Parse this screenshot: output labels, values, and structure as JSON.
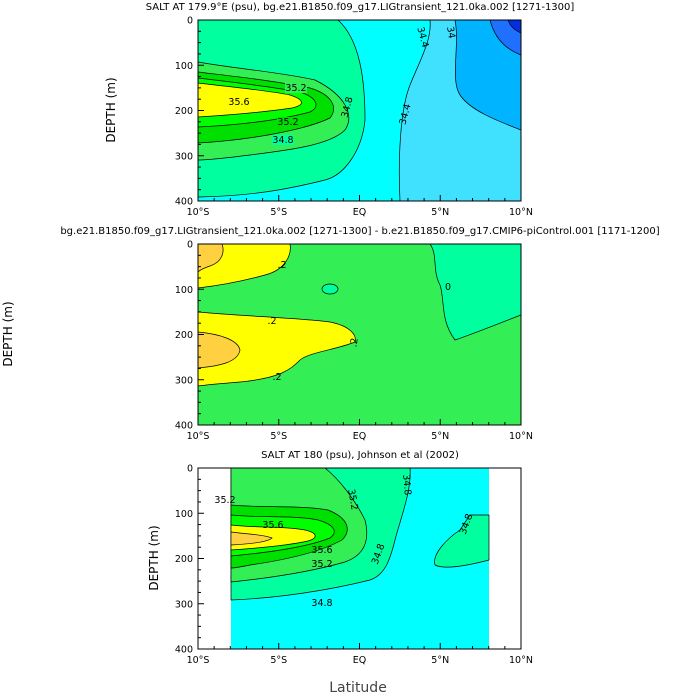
{
  "figure": {
    "xlabel": "Latitude"
  },
  "palette": {
    "cyan": "#00ffff",
    "sky": "#40e0ff",
    "blue": "#00b4ff",
    "deepblue": "#2070ff",
    "navy": "#0030e0",
    "mint": "#00ff9f",
    "lightgreen": "#33ee55",
    "green": "#00e000",
    "brightgreen": "#00ff00",
    "yellow": "#ffff00",
    "gold": "#ffd040",
    "orange": "#f6b048"
  },
  "chart_data": [
    {
      "type": "contour",
      "title": "SALT AT 179.9°E (psu), bg.e21.B1850.f09_g17.LIGtransient_121.0ka.002 [1271-1300]",
      "xlabel": "",
      "ylabel": "DEPTH (m)",
      "xlim": [
        -10,
        10
      ],
      "ylim": [
        400,
        0
      ],
      "x_ticks": [
        "10°S",
        "5°S",
        "EQ",
        "5°N",
        "10°N"
      ],
      "y_ticks": [
        0,
        100,
        200,
        300,
        400
      ],
      "contour_labels": [
        {
          "value": "35.2",
          "x": -3.8,
          "depth": 160
        },
        {
          "value": "35.6",
          "x": -7.3,
          "depth": 75
        },
        {
          "value": "35.2",
          "x": -4.8,
          "depth": 255
        },
        {
          "value": "34.8",
          "x": -5.2,
          "depth": 100
        },
        {
          "value": "34.8",
          "x": -1.0,
          "depth": 200
        },
        {
          "value": "34.4",
          "x": 3.1,
          "depth": 95
        },
        {
          "value": "34.4",
          "x": 2.8,
          "depth": 280
        },
        {
          "value": "34",
          "x": 6.5,
          "depth": 110
        }
      ],
      "features": [
        {
          "name": "subsurface salinity maximum",
          "max": 35.6,
          "x": -8.0,
          "depth": 175
        }
      ]
    },
    {
      "type": "contour",
      "title": "bg.e21.B1850.f09_g17.LIGtransient_121.0ka.002 [1271-1300] - b.e21.B1850.f09_g17.CMIP6-piControl.001 [1171-1200]",
      "xlabel": "",
      "ylabel": "DEPTH (m)",
      "xlim": [
        -10,
        10
      ],
      "ylim": [
        400,
        0
      ],
      "x_ticks": [
        "10°S",
        "5°S",
        "EQ",
        "5°N",
        "10°N"
      ],
      "y_ticks": [
        0,
        100,
        200,
        300,
        400
      ],
      "contour_labels": [
        {
          "value": ".2",
          "x": -5.3,
          "depth": 40
        },
        {
          "value": "0",
          "x": 5.3,
          "depth": 80
        },
        {
          "value": ".2",
          "x": -5.5,
          "depth": 150
        },
        {
          "value": ".2",
          "x": -0.3,
          "depth": 160
        },
        {
          "value": ".2",
          "x": -5.3,
          "depth": 245
        }
      ],
      "features": []
    },
    {
      "type": "contour",
      "title": "SALT AT 180 (psu), Johnson et al (2002)",
      "xlabel": "",
      "ylabel": "DEPTH (m)",
      "xlim": [
        -10,
        10
      ],
      "ylim": [
        400,
        0
      ],
      "data_xlim": [
        -8,
        8
      ],
      "x_ticks": [
        "10°S",
        "5°S",
        "EQ",
        "5°N",
        "10°N"
      ],
      "y_ticks": [
        0,
        100,
        200,
        300,
        400
      ],
      "contour_labels": [
        {
          "value": "35.2",
          "x": -7.8,
          "depth": 60
        },
        {
          "value": "35.6",
          "x": -5.5,
          "depth": 110
        },
        {
          "value": "35.6",
          "x": -2.3,
          "depth": 180
        },
        {
          "value": "35.2",
          "x": -2.3,
          "depth": 195
        },
        {
          "value": "35.2",
          "x": -0.3,
          "depth": 10
        },
        {
          "value": "34.8",
          "x": 2.7,
          "depth": 20
        },
        {
          "value": "34.8",
          "x": 1.3,
          "depth": 185
        },
        {
          "value": "34.8",
          "x": 6.8,
          "depth": 165
        },
        {
          "value": "34.8",
          "x": -3.3,
          "depth": 310
        }
      ],
      "features": [
        {
          "name": "subsurface salinity maximum",
          "max": 35.6,
          "x": -7.0,
          "depth": 165
        }
      ]
    }
  ]
}
